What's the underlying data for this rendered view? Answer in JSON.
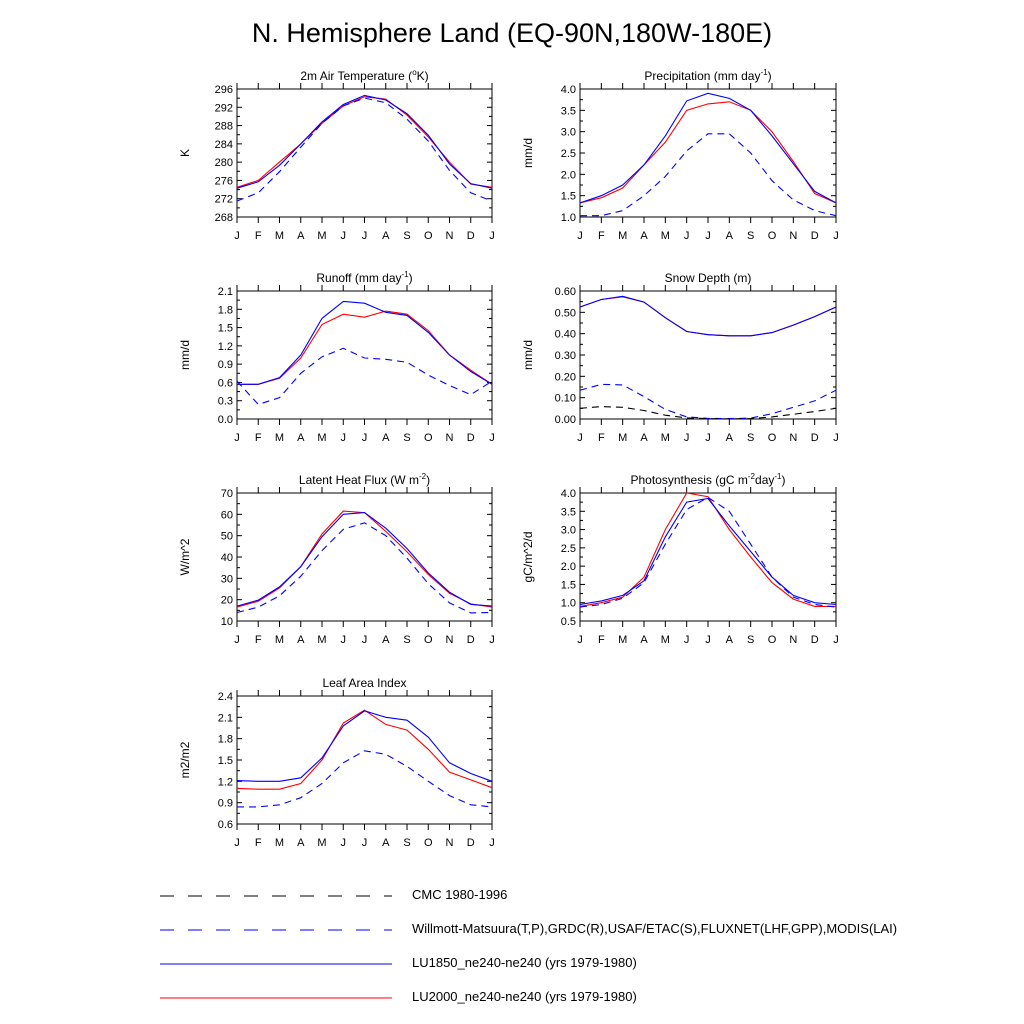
{
  "title": "N. Hemisphere Land (EQ-90N,180W-180E)",
  "months": [
    "J",
    "F",
    "M",
    "A",
    "M",
    "J",
    "J",
    "A",
    "S",
    "O",
    "N",
    "D",
    "J"
  ],
  "colors": {
    "red": "#ff0000",
    "blue": "#0000ff",
    "black": "#000000"
  },
  "legend": [
    {
      "label": "CMC 1980-1996",
      "color": "#000000",
      "dash": true
    },
    {
      "label": "Willmott-Matsuura(T,P),GRDC(R),USAF/ETAC(S),FLUXNET(LHF,GPP),MODIS(LAI)",
      "color": "#0000ff",
      "dash": true
    },
    {
      "label": "LU1850_ne240-ne240 (yrs 1979-1980)",
      "color": "#0000ff",
      "dash": false
    },
    {
      "label": "LU2000_ne240-ne240 (yrs 1979-1980)",
      "color": "#ff0000",
      "dash": false
    }
  ],
  "chart_data": [
    {
      "type": "line",
      "title": "2m Air Temperature (oK)",
      "ylabel": "K",
      "ylim": [
        268,
        296
      ],
      "yticks": [
        "296",
        "292",
        "288",
        "284",
        "280",
        "276",
        "272",
        "268"
      ],
      "series": [
        {
          "name": "LU2000_ne240-ne240 (yrs 1979-1980)",
          "color": "#ff0000",
          "dash": false,
          "values": [
            274.5,
            276,
            280,
            284,
            288.5,
            292.3,
            294.3,
            293.8,
            290.3,
            285.5,
            280,
            275.2,
            274.5
          ]
        },
        {
          "name": "LU1850_ne240-ne240 (yrs 1979-1980)",
          "color": "#0000ff",
          "dash": false,
          "values": [
            274.3,
            275.7,
            279.3,
            284,
            288.8,
            292.6,
            294.6,
            293.6,
            290.6,
            285.9,
            279.6,
            275.3,
            274.3
          ]
        },
        {
          "name": "Willmott-Matsuura(T,P),GRDC(R),USAF/ETAC(S),FLUXNET(LHF,GPP),MODIS(LAI)",
          "color": "#0000ff",
          "dash": true,
          "values": [
            271.5,
            273.3,
            277.9,
            283.3,
            288.5,
            292.3,
            294,
            293,
            289.4,
            284.6,
            278.2,
            273.3,
            271.5
          ]
        }
      ]
    },
    {
      "type": "line",
      "title": "Precipitation (mm day-1)",
      "ylabel": "mm/d",
      "ylim": [
        1.0,
        4.0
      ],
      "yticks": [
        "4.0",
        "3.5",
        "3.0",
        "2.5",
        "2.0",
        "1.5",
        "1.0"
      ],
      "series": [
        {
          "name": "LU2000_ne240-ne240 (yrs 1979-1980)",
          "color": "#ff0000",
          "dash": false,
          "values": [
            1.33,
            1.45,
            1.68,
            2.22,
            2.75,
            3.5,
            3.65,
            3.7,
            3.5,
            3.0,
            2.3,
            1.55,
            1.33
          ]
        },
        {
          "name": "LU1850_ne240-ne240 (yrs 1979-1980)",
          "color": "#0000ff",
          "dash": false,
          "values": [
            1.33,
            1.5,
            1.75,
            2.22,
            2.9,
            3.72,
            3.9,
            3.78,
            3.5,
            2.9,
            2.25,
            1.6,
            1.33
          ]
        },
        {
          "name": "Willmott-Matsuura(T,P),GRDC(R),USAF/ETAC(S),FLUXNET(LHF,GPP),MODIS(LAI)",
          "color": "#0000ff",
          "dash": true,
          "values": [
            1.03,
            1.03,
            1.15,
            1.5,
            1.95,
            2.55,
            2.95,
            2.95,
            2.5,
            1.85,
            1.4,
            1.15,
            1.03
          ]
        }
      ]
    },
    {
      "type": "line",
      "title": "Runoff (mm day-1)",
      "ylabel": "mm/d",
      "ylim": [
        0.0,
        2.1
      ],
      "yticks": [
        "2.1",
        "1.8",
        "1.5",
        "1.2",
        "0.9",
        "0.6",
        "0.3",
        "0.0"
      ],
      "series": [
        {
          "name": "LU2000_ne240-ne240 (yrs 1979-1980)",
          "color": "#ff0000",
          "dash": false,
          "values": [
            0.57,
            0.57,
            0.67,
            1.0,
            1.55,
            1.72,
            1.67,
            1.77,
            1.72,
            1.45,
            1.05,
            0.8,
            0.57
          ]
        },
        {
          "name": "LU1850_ne240-ne240 (yrs 1979-1980)",
          "color": "#0000ff",
          "dash": false,
          "values": [
            0.57,
            0.57,
            0.68,
            1.05,
            1.65,
            1.93,
            1.9,
            1.75,
            1.7,
            1.42,
            1.05,
            0.78,
            0.57
          ]
        },
        {
          "name": "Willmott-Matsuura(T,P),GRDC(R),USAF/ETAC(S),FLUXNET(LHF,GPP),MODIS(LAI)",
          "color": "#0000ff",
          "dash": true,
          "values": [
            0.62,
            0.24,
            0.35,
            0.75,
            1.02,
            1.16,
            1.0,
            0.98,
            0.93,
            0.72,
            0.55,
            0.4,
            0.62
          ]
        }
      ]
    },
    {
      "type": "line",
      "title": "Snow Depth (m)",
      "ylabel": "mm/d",
      "ylim": [
        0.0,
        0.6
      ],
      "yticks": [
        "0.60",
        "0.50",
        "0.40",
        "0.30",
        "0.20",
        "0.10",
        "0.00"
      ],
      "series": [
        {
          "name": "LU2000_ne240-ne240 (yrs 1979-1980)",
          "color": "#ff0000",
          "dash": false,
          "values": [
            0.525,
            0.56,
            0.573,
            0.548,
            0.475,
            0.41,
            0.395,
            0.39,
            0.39,
            0.405,
            0.44,
            0.48,
            0.525
          ]
        },
        {
          "name": "LU1850_ne240-ne240 (yrs 1979-1980)",
          "color": "#0000ff",
          "dash": false,
          "values": [
            0.525,
            0.56,
            0.575,
            0.548,
            0.475,
            0.41,
            0.395,
            0.39,
            0.39,
            0.405,
            0.44,
            0.48,
            0.525
          ]
        },
        {
          "name": "Willmott-Matsuura(T,P),GRDC(R),USAF/ETAC(S),FLUXNET(LHF,GPP),MODIS(LAI)",
          "color": "#0000ff",
          "dash": true,
          "values": [
            0.135,
            0.162,
            0.16,
            0.105,
            0.045,
            0.01,
            0.003,
            0.002,
            0.004,
            0.025,
            0.055,
            0.085,
            0.135
          ]
        },
        {
          "name": "CMC 1980-1996",
          "color": "#000000",
          "dash": true,
          "values": [
            0.05,
            0.058,
            0.055,
            0.04,
            0.018,
            0.005,
            0.002,
            0.001,
            0.002,
            0.01,
            0.022,
            0.035,
            0.05
          ]
        }
      ]
    },
    {
      "type": "line",
      "title": "Latent Heat Flux (W m-2)",
      "ylabel": "W/m^2",
      "ylim": [
        10,
        70
      ],
      "yticks": [
        "70",
        "60",
        "50",
        "40",
        "30",
        "20",
        "10"
      ],
      "series": [
        {
          "name": "LU2000_ne240-ne240 (yrs 1979-1980)",
          "color": "#ff0000",
          "dash": false,
          "values": [
            16.5,
            19.3,
            25.5,
            35.5,
            50.8,
            61.5,
            60.8,
            52,
            42.5,
            31.8,
            23,
            18,
            16.5
          ]
        },
        {
          "name": "LU1850_ne240-ne240 (yrs 1979-1980)",
          "color": "#0000ff",
          "dash": false,
          "values": [
            17,
            19.8,
            26,
            35.5,
            49.5,
            60,
            60.8,
            53.5,
            44,
            32.5,
            23.5,
            17.8,
            17
          ]
        },
        {
          "name": "Willmott-Matsuura(T,P),GRDC(R),USAF/ETAC(S),FLUXNET(LHF,GPP),MODIS(LAI)",
          "color": "#0000ff",
          "dash": true,
          "values": [
            14,
            16.5,
            21.8,
            31,
            43,
            53,
            56,
            50,
            39.5,
            27.5,
            18.5,
            13.8,
            14
          ]
        }
      ]
    },
    {
      "type": "line",
      "title": "Photosynthesis (gC m-2day-1)",
      "ylabel": "gC/m^2/d",
      "ylim": [
        0.5,
        4.0
      ],
      "yticks": [
        "4.0",
        "3.5",
        "3.0",
        "2.5",
        "2.0",
        "1.5",
        "1.0",
        "0.5"
      ],
      "series": [
        {
          "name": "LU2000_ne240-ne240 (yrs 1979-1980)",
          "color": "#ff0000",
          "dash": false,
          "values": [
            0.9,
            1.0,
            1.15,
            1.7,
            3.0,
            4.0,
            3.9,
            3.0,
            2.25,
            1.55,
            1.1,
            0.9,
            0.9
          ]
        },
        {
          "name": "LU1850_ne240-ne240 (yrs 1979-1980)",
          "color": "#0000ff",
          "dash": false,
          "values": [
            0.95,
            1.05,
            1.2,
            1.6,
            2.8,
            3.75,
            3.85,
            3.1,
            2.4,
            1.7,
            1.2,
            1.0,
            0.95
          ]
        },
        {
          "name": "Willmott-Matsuura(T,P),GRDC(R),USAF/ETAC(S),FLUXNET(LHF,GPP),MODIS(LAI)",
          "color": "#0000ff",
          "dash": true,
          "values": [
            0.88,
            0.95,
            1.12,
            1.55,
            2.6,
            3.55,
            3.88,
            3.5,
            2.6,
            1.7,
            1.15,
            0.95,
            0.88
          ]
        }
      ]
    },
    {
      "type": "line",
      "title": "Leaf Area Index",
      "ylabel": "m2/m2",
      "ylim": [
        0.6,
        2.4
      ],
      "yticks": [
        "2.4",
        "2.1",
        "1.8",
        "1.5",
        "1.2",
        "0.9",
        "0.6"
      ],
      "series": [
        {
          "name": "LU2000_ne240-ne240 (yrs 1979-1980)",
          "color": "#ff0000",
          "dash": false,
          "values": [
            1.1,
            1.09,
            1.09,
            1.17,
            1.5,
            2.02,
            2.2,
            2.0,
            1.92,
            1.65,
            1.33,
            1.22,
            1.11
          ]
        },
        {
          "name": "LU1850_ne240-ne240 (yrs 1979-1980)",
          "color": "#0000ff",
          "dash": false,
          "values": [
            1.21,
            1.2,
            1.2,
            1.25,
            1.53,
            1.98,
            2.19,
            2.1,
            2.06,
            1.82,
            1.46,
            1.31,
            1.2
          ]
        },
        {
          "name": "Willmott-Matsuura(T,P),GRDC(R),USAF/ETAC(S),FLUXNET(LHF,GPP),MODIS(LAI)",
          "color": "#0000ff",
          "dash": true,
          "values": [
            0.84,
            0.84,
            0.87,
            0.97,
            1.17,
            1.46,
            1.63,
            1.58,
            1.41,
            1.2,
            1.0,
            0.87,
            0.84
          ]
        }
      ]
    }
  ]
}
